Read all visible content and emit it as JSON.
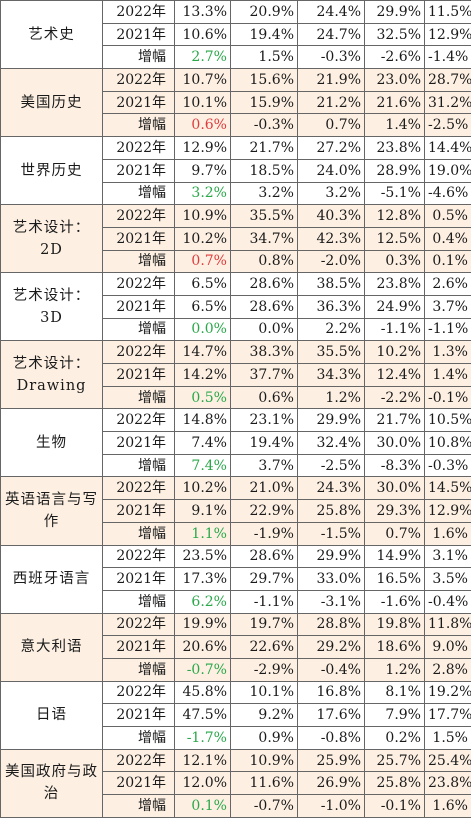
{
  "row_labels": {
    "y2022": "2022年",
    "y2021": "2021年",
    "growth": "增幅"
  },
  "colors": {
    "shade": "#fdf0e3",
    "positive": "#2aa84a",
    "negative": "#e03b3b",
    "border": "#666666"
  },
  "subjects": [
    {
      "name": "艺术史",
      "shaded": false,
      "y2022": [
        "13.3%",
        "20.9%",
        "24.4%",
        "29.9%",
        "11.5%"
      ],
      "y2021": [
        "10.6%",
        "19.4%",
        "24.7%",
        "32.5%",
        "12.9%"
      ],
      "growth": [
        "2.7%",
        "1.5%",
        "-0.3%",
        "-2.6%",
        "-1.4%"
      ],
      "growth_color": "positive"
    },
    {
      "name": "美国历史",
      "shaded": true,
      "y2022": [
        "10.7%",
        "15.6%",
        "21.9%",
        "23.0%",
        "28.7%"
      ],
      "y2021": [
        "10.1%",
        "15.9%",
        "21.2%",
        "21.6%",
        "31.2%"
      ],
      "growth": [
        "0.6%",
        "-0.3%",
        "0.7%",
        "1.4%",
        "-2.5%"
      ],
      "growth_color": "negative"
    },
    {
      "name": "世界历史",
      "shaded": false,
      "y2022": [
        "12.9%",
        "21.7%",
        "27.2%",
        "23.8%",
        "14.4%"
      ],
      "y2021": [
        "9.7%",
        "18.5%",
        "24.0%",
        "28.9%",
        "19.0%"
      ],
      "growth": [
        "3.2%",
        "3.2%",
        "3.2%",
        "-5.1%",
        "-4.6%"
      ],
      "growth_color": "positive"
    },
    {
      "name": "艺术设计：2D",
      "shaded": true,
      "y2022": [
        "10.9%",
        "35.5%",
        "40.3%",
        "12.8%",
        "0.5%"
      ],
      "y2021": [
        "10.2%",
        "34.7%",
        "42.3%",
        "12.5%",
        "0.4%"
      ],
      "growth": [
        "0.7%",
        "0.8%",
        "-2.0%",
        "0.3%",
        "0.1%"
      ],
      "growth_color": "negative"
    },
    {
      "name": "艺术设计：3D",
      "shaded": false,
      "y2022": [
        "6.5%",
        "28.6%",
        "38.5%",
        "23.8%",
        "2.6%"
      ],
      "y2021": [
        "6.5%",
        "28.6%",
        "36.3%",
        "24.9%",
        "3.7%"
      ],
      "growth": [
        "0.0%",
        "0.0%",
        "2.2%",
        "-1.1%",
        "-1.1%"
      ],
      "growth_color": "positive"
    },
    {
      "name": "艺术设计：Drawing",
      "shaded": true,
      "y2022": [
        "14.7%",
        "38.3%",
        "35.5%",
        "10.2%",
        "1.3%"
      ],
      "y2021": [
        "14.2%",
        "37.7%",
        "34.3%",
        "12.4%",
        "1.4%"
      ],
      "growth": [
        "0.5%",
        "0.6%",
        "1.2%",
        "-2.2%",
        "-0.1%"
      ],
      "growth_color": "positive"
    },
    {
      "name": "生物",
      "shaded": false,
      "y2022": [
        "14.8%",
        "23.1%",
        "29.9%",
        "21.7%",
        "10.5%"
      ],
      "y2021": [
        "7.4%",
        "19.4%",
        "32.4%",
        "30.0%",
        "10.8%"
      ],
      "growth": [
        "7.4%",
        "3.7%",
        "-2.5%",
        "-8.3%",
        "-0.3%"
      ],
      "growth_color": "positive"
    },
    {
      "name": "英语语言与写作",
      "shaded": true,
      "y2022": [
        "10.2%",
        "21.0%",
        "24.3%",
        "30.0%",
        "14.5%"
      ],
      "y2021": [
        "9.1%",
        "22.9%",
        "25.8%",
        "29.3%",
        "12.9%"
      ],
      "growth": [
        "1.1%",
        "-1.9%",
        "-1.5%",
        "0.7%",
        "1.6%"
      ],
      "growth_color": "positive"
    },
    {
      "name": "西班牙语言",
      "shaded": false,
      "y2022": [
        "23.5%",
        "28.6%",
        "29.9%",
        "14.9%",
        "3.1%"
      ],
      "y2021": [
        "17.3%",
        "29.7%",
        "33.0%",
        "16.5%",
        "3.5%"
      ],
      "growth": [
        "6.2%",
        "-1.1%",
        "-3.1%",
        "-1.6%",
        "-0.4%"
      ],
      "growth_color": "positive"
    },
    {
      "name": "意大利语",
      "shaded": true,
      "y2022": [
        "19.9%",
        "19.7%",
        "28.8%",
        "19.8%",
        "11.8%"
      ],
      "y2021": [
        "20.6%",
        "22.6%",
        "29.2%",
        "18.6%",
        "9.0%"
      ],
      "growth": [
        "-0.7%",
        "-2.9%",
        "-0.4%",
        "1.2%",
        "2.8%"
      ],
      "growth_color": "positive"
    },
    {
      "name": "日语",
      "shaded": false,
      "y2022": [
        "45.8%",
        "10.1%",
        "16.8%",
        "8.1%",
        "19.2%"
      ],
      "y2021": [
        "47.5%",
        "9.2%",
        "17.6%",
        "7.9%",
        "17.7%"
      ],
      "growth": [
        "-1.7%",
        "0.9%",
        "-0.8%",
        "0.2%",
        "1.5%"
      ],
      "growth_color": "positive"
    },
    {
      "name": "美国政府与政治",
      "shaded": true,
      "y2022": [
        "12.1%",
        "10.9%",
        "25.9%",
        "25.7%",
        "25.4%"
      ],
      "y2021": [
        "12.0%",
        "11.6%",
        "26.9%",
        "25.8%",
        "23.8%"
      ],
      "growth": [
        "0.1%",
        "-0.7%",
        "-1.0%",
        "-0.1%",
        "1.6%"
      ],
      "growth_color": "positive"
    }
  ]
}
